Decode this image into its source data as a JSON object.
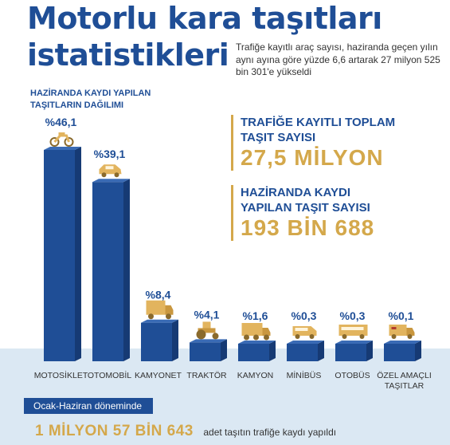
{
  "header": {
    "title_line1": "Motorlu kara taşıtları",
    "title_line2": "istatistikleri",
    "subtitle": "Trafiğe kayıtlı araç sayısı, haziranda geçen yılın aynı ayına göre yüzde 6,6 artarak 27 milyon 525 bin 301'e yükseldi"
  },
  "chart_section": {
    "label_line1": "HAZİRANDA KAYDI YAPILAN",
    "label_line2": "TAŞITLARIN DAĞILIMI"
  },
  "stats": [
    {
      "label_line1": "TRAFİĞE KAYITLI TOPLAM",
      "label_line2": "TAŞIT SAYISI",
      "value": "27,5 MİLYON"
    },
    {
      "label_line1": "HAZİRANDA KAYDI",
      "label_line2": "YAPILAN TAŞIT SAYISI",
      "value": "193 BİN 688"
    }
  ],
  "chart_data": {
    "type": "bar",
    "title": "HAZİRANDA KAYDI YAPILAN TAŞITLARIN DAĞILIMI",
    "unit": "%",
    "categories": [
      "MOTOSİKLET",
      "OTOMOBİL",
      "KAMYONET",
      "TRAKTÖR",
      "KAMYON",
      "MİNİBÜS",
      "OTOBÜS",
      "ÖZEL AMAÇLI TAŞITLAR"
    ],
    "values": [
      46.1,
      39.1,
      8.4,
      4.1,
      1.6,
      0.3,
      0.3,
      0.1
    ],
    "value_labels": [
      "%46,1",
      "%39,1",
      "%8,4",
      "%4,1",
      "%1,6",
      "%0,3",
      "%0,3",
      "%0,1"
    ],
    "icons": [
      "motorcycle-icon",
      "car-icon",
      "van-icon",
      "tractor-icon",
      "truck-icon",
      "minibus-icon",
      "bus-icon",
      "special-vehicle-icon"
    ],
    "colors": {
      "bar_front": "#1f4e96",
      "bar_side": "#163a74",
      "bar_top": "#3a6bb5",
      "icon": "#e2b45e"
    }
  },
  "footer": {
    "period_label": "Ocak-Haziran döneminde",
    "value": "1 MİLYON 57 BİN 643",
    "text": "adet taşıtın trafiğe kaydı yapıldı"
  }
}
